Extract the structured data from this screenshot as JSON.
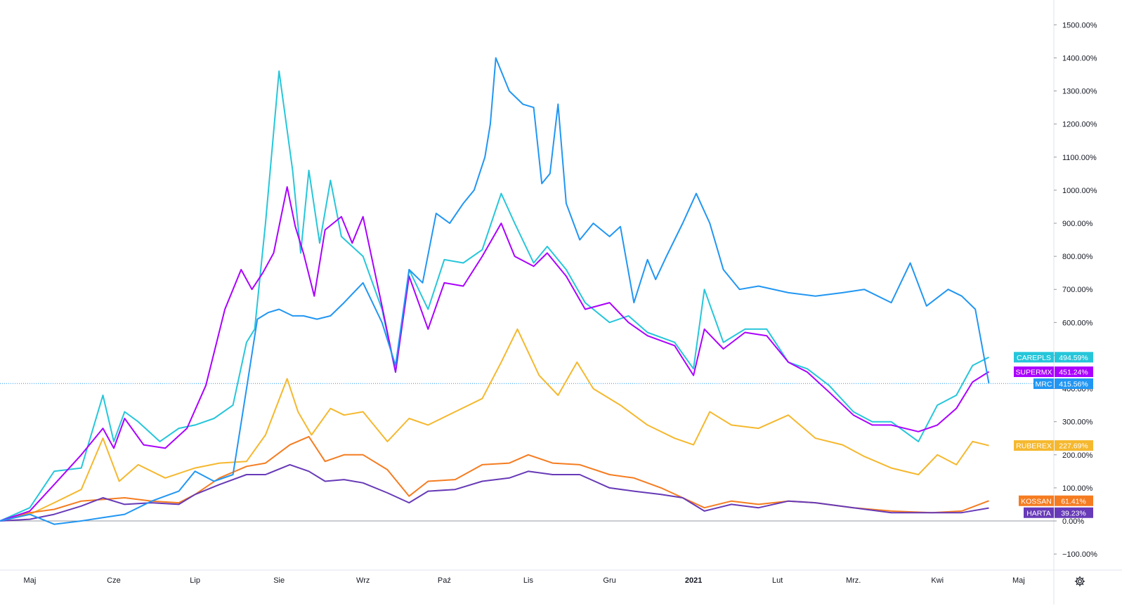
{
  "chart_data": {
    "type": "line",
    "title": "",
    "xlabel": "",
    "ylabel": "",
    "ylim": [
      -150,
      1600
    ],
    "y_ticks": [
      -100,
      0,
      100,
      200,
      300,
      400,
      500,
      600,
      700,
      800,
      900,
      1000,
      1100,
      1200,
      1300,
      1400,
      1500
    ],
    "y_tick_labels": [
      "−100.00%",
      "0.00%",
      "100.00%",
      "200.00%",
      "300.00%",
      "400.00%",
      "500.00%",
      "600.00%",
      "700.00%",
      "800.00%",
      "900.00%",
      "1000.00%",
      "1100.00%",
      "1200.00%",
      "1300.00%",
      "1400.00%",
      "1500.00%"
    ],
    "x_range": [
      "2020-04-20",
      "2021-05-14"
    ],
    "x_ticks": [
      {
        "date": "2020-05-01",
        "label": "Maj",
        "bold": false
      },
      {
        "date": "2020-06-01",
        "label": "Cze",
        "bold": false
      },
      {
        "date": "2020-07-01",
        "label": "Lip",
        "bold": false
      },
      {
        "date": "2020-08-01",
        "label": "Sie",
        "bold": false
      },
      {
        "date": "2020-09-01",
        "label": "Wrz",
        "bold": false
      },
      {
        "date": "2020-10-01",
        "label": "Paź",
        "bold": false
      },
      {
        "date": "2020-11-01",
        "label": "Lis",
        "bold": false
      },
      {
        "date": "2020-12-01",
        "label": "Gru",
        "bold": false
      },
      {
        "date": "2021-01-01",
        "label": "2021",
        "bold": true
      },
      {
        "date": "2021-02-01",
        "label": "Lut",
        "bold": false
      },
      {
        "date": "2021-03-01",
        "label": "Mrz.",
        "bold": false
      },
      {
        "date": "2021-04-01",
        "label": "Kwi",
        "bold": false
      },
      {
        "date": "2021-05-01",
        "label": "Maj",
        "bold": false
      }
    ],
    "reference_line": {
      "value": 415.56,
      "color": "#2196f3"
    },
    "series": [
      {
        "name": "RUBEREX",
        "color": "#f5b82e",
        "last_label": "227.69%",
        "x": [
          "2020-04-20",
          "2020-05-01",
          "2020-05-10",
          "2020-05-20",
          "2020-05-28",
          "2020-06-03",
          "2020-06-10",
          "2020-06-20",
          "2020-07-01",
          "2020-07-10",
          "2020-07-20",
          "2020-07-27",
          "2020-08-04",
          "2020-08-08",
          "2020-08-13",
          "2020-08-20",
          "2020-08-25",
          "2020-09-01",
          "2020-09-10",
          "2020-09-18",
          "2020-09-25",
          "2020-10-05",
          "2020-10-15",
          "2020-10-22",
          "2020-10-28",
          "2020-11-05",
          "2020-11-12",
          "2020-11-19",
          "2020-11-25",
          "2020-12-05",
          "2020-12-15",
          "2020-12-25",
          "2021-01-01",
          "2021-01-07",
          "2021-01-15",
          "2021-01-25",
          "2021-02-05",
          "2021-02-15",
          "2021-02-25",
          "2021-03-05",
          "2021-03-15",
          "2021-03-25",
          "2021-04-01",
          "2021-04-08",
          "2021-04-14",
          "2021-04-20"
        ],
        "values": [
          0,
          20,
          55,
          95,
          250,
          120,
          170,
          130,
          160,
          175,
          180,
          260,
          430,
          330,
          260,
          340,
          320,
          330,
          240,
          310,
          290,
          330,
          370,
          480,
          580,
          440,
          380,
          480,
          400,
          350,
          290,
          250,
          230,
          330,
          290,
          280,
          320,
          250,
          230,
          195,
          160,
          140,
          200,
          170,
          240,
          228
        ]
      },
      {
        "name": "KOSSAN",
        "color": "#f57c20",
        "last_label": "61.41%",
        "x": [
          "2020-04-20",
          "2020-05-01",
          "2020-05-10",
          "2020-05-20",
          "2020-05-28",
          "2020-06-05",
          "2020-06-15",
          "2020-06-25",
          "2020-07-01",
          "2020-07-10",
          "2020-07-20",
          "2020-07-27",
          "2020-08-05",
          "2020-08-12",
          "2020-08-18",
          "2020-08-25",
          "2020-09-01",
          "2020-09-10",
          "2020-09-18",
          "2020-09-25",
          "2020-10-05",
          "2020-10-15",
          "2020-10-25",
          "2020-11-01",
          "2020-11-10",
          "2020-11-20",
          "2020-12-01",
          "2020-12-10",
          "2020-12-20",
          "2020-12-28",
          "2021-01-05",
          "2021-01-15",
          "2021-01-25",
          "2021-02-05",
          "2021-02-15",
          "2021-03-01",
          "2021-03-15",
          "2021-03-30",
          "2021-04-10",
          "2021-04-20"
        ],
        "values": [
          0,
          25,
          35,
          60,
          65,
          70,
          60,
          55,
          80,
          130,
          165,
          175,
          230,
          255,
          180,
          200,
          200,
          155,
          75,
          120,
          125,
          170,
          175,
          200,
          175,
          170,
          140,
          130,
          100,
          70,
          40,
          60,
          50,
          60,
          55,
          40,
          30,
          25,
          30,
          61
        ]
      },
      {
        "name": "HARTA",
        "color": "#673ab7",
        "last_label": "39.23%",
        "x": [
          "2020-04-20",
          "2020-05-01",
          "2020-05-10",
          "2020-05-20",
          "2020-05-28",
          "2020-06-05",
          "2020-06-15",
          "2020-06-25",
          "2020-07-01",
          "2020-07-10",
          "2020-07-20",
          "2020-07-27",
          "2020-08-05",
          "2020-08-12",
          "2020-08-18",
          "2020-08-25",
          "2020-09-01",
          "2020-09-10",
          "2020-09-18",
          "2020-09-25",
          "2020-10-05",
          "2020-10-15",
          "2020-10-25",
          "2020-11-01",
          "2020-11-10",
          "2020-11-20",
          "2020-12-01",
          "2020-12-10",
          "2020-12-20",
          "2020-12-28",
          "2021-01-05",
          "2021-01-15",
          "2021-01-25",
          "2021-02-05",
          "2021-02-15",
          "2021-03-01",
          "2021-03-15",
          "2021-03-30",
          "2021-04-10",
          "2021-04-20"
        ],
        "values": [
          0,
          5,
          20,
          45,
          70,
          50,
          55,
          50,
          80,
          110,
          140,
          140,
          170,
          150,
          120,
          125,
          115,
          85,
          55,
          90,
          95,
          120,
          130,
          150,
          140,
          140,
          100,
          90,
          80,
          70,
          30,
          50,
          40,
          60,
          55,
          40,
          25,
          25,
          25,
          39
        ]
      },
      {
        "name": "CAREPLS",
        "color": "#26c6da",
        "last_label": "494.59%",
        "x": [
          "2020-04-20",
          "2020-05-01",
          "2020-05-10",
          "2020-05-20",
          "2020-05-28",
          "2020-06-01",
          "2020-06-05",
          "2020-06-10",
          "2020-06-18",
          "2020-06-25",
          "2020-07-01",
          "2020-07-08",
          "2020-07-15",
          "2020-07-20",
          "2020-07-23",
          "2020-07-27",
          "2020-08-01",
          "2020-08-06",
          "2020-08-09",
          "2020-08-12",
          "2020-08-16",
          "2020-08-20",
          "2020-08-24",
          "2020-08-28",
          "2020-09-01",
          "2020-09-08",
          "2020-09-13",
          "2020-09-18",
          "2020-09-25",
          "2020-10-01",
          "2020-10-08",
          "2020-10-15",
          "2020-10-22",
          "2020-10-27",
          "2020-11-03",
          "2020-11-08",
          "2020-11-15",
          "2020-11-22",
          "2020-12-01",
          "2020-12-08",
          "2020-12-15",
          "2020-12-25",
          "2021-01-01",
          "2021-01-05",
          "2021-01-12",
          "2021-01-20",
          "2021-01-28",
          "2021-02-05",
          "2021-02-12",
          "2021-02-20",
          "2021-03-01",
          "2021-03-08",
          "2021-03-15",
          "2021-03-25",
          "2021-04-01",
          "2021-04-08",
          "2021-04-14",
          "2021-04-20"
        ],
        "values": [
          0,
          40,
          150,
          160,
          380,
          240,
          330,
          300,
          240,
          280,
          290,
          310,
          350,
          540,
          580,
          900,
          1360,
          1060,
          810,
          1060,
          840,
          1030,
          860,
          830,
          800,
          640,
          450,
          760,
          640,
          790,
          780,
          820,
          990,
          900,
          780,
          830,
          760,
          660,
          600,
          620,
          570,
          540,
          460,
          700,
          540,
          580,
          580,
          480,
          460,
          410,
          330,
          300,
          300,
          240,
          350,
          380,
          470,
          495
        ]
      },
      {
        "name": "SUPERMX",
        "color": "#aa00ff",
        "last_label": "451.24%",
        "x": [
          "2020-04-20",
          "2020-05-01",
          "2020-05-10",
          "2020-05-20",
          "2020-05-28",
          "2020-06-01",
          "2020-06-05",
          "2020-06-12",
          "2020-06-20",
          "2020-06-28",
          "2020-07-05",
          "2020-07-12",
          "2020-07-18",
          "2020-07-22",
          "2020-07-26",
          "2020-07-30",
          "2020-08-04",
          "2020-08-07",
          "2020-08-10",
          "2020-08-14",
          "2020-08-18",
          "2020-08-24",
          "2020-08-28",
          "2020-09-01",
          "2020-09-08",
          "2020-09-13",
          "2020-09-18",
          "2020-09-25",
          "2020-10-01",
          "2020-10-08",
          "2020-10-15",
          "2020-10-22",
          "2020-10-27",
          "2020-11-03",
          "2020-11-08",
          "2020-11-15",
          "2020-11-22",
          "2020-12-01",
          "2020-12-08",
          "2020-12-15",
          "2020-12-25",
          "2021-01-01",
          "2021-01-05",
          "2021-01-12",
          "2021-01-20",
          "2021-01-28",
          "2021-02-05",
          "2021-02-12",
          "2021-02-20",
          "2021-03-01",
          "2021-03-08",
          "2021-03-15",
          "2021-03-25",
          "2021-04-01",
          "2021-04-08",
          "2021-04-14",
          "2021-04-20"
        ],
        "values": [
          0,
          30,
          110,
          200,
          280,
          220,
          310,
          230,
          220,
          280,
          410,
          640,
          760,
          700,
          750,
          810,
          1010,
          890,
          810,
          680,
          880,
          920,
          840,
          920,
          650,
          450,
          740,
          580,
          720,
          710,
          800,
          900,
          800,
          770,
          810,
          740,
          640,
          660,
          600,
          560,
          530,
          440,
          580,
          520,
          570,
          560,
          480,
          450,
          390,
          320,
          290,
          290,
          270,
          290,
          340,
          420,
          451
        ]
      },
      {
        "name": "MRC",
        "color": "#2196f3",
        "last_label": "415.56%",
        "x": [
          "2020-04-20",
          "2020-05-01",
          "2020-05-10",
          "2020-05-20",
          "2020-05-28",
          "2020-06-05",
          "2020-06-15",
          "2020-06-25",
          "2020-07-01",
          "2020-07-08",
          "2020-07-15",
          "2020-07-20",
          "2020-07-24",
          "2020-07-28",
          "2020-08-01",
          "2020-08-06",
          "2020-08-10",
          "2020-08-15",
          "2020-08-20",
          "2020-08-25",
          "2020-09-01",
          "2020-09-08",
          "2020-09-13",
          "2020-09-18",
          "2020-09-23",
          "2020-09-28",
          "2020-10-03",
          "2020-10-08",
          "2020-10-12",
          "2020-10-16",
          "2020-10-18",
          "2020-10-20",
          "2020-10-25",
          "2020-10-30",
          "2020-11-03",
          "2020-11-06",
          "2020-11-09",
          "2020-11-12",
          "2020-11-15",
          "2020-11-20",
          "2020-11-25",
          "2020-12-01",
          "2020-12-05",
          "2020-12-10",
          "2020-12-15",
          "2020-12-18",
          "2020-12-22",
          "2020-12-28",
          "2021-01-02",
          "2021-01-07",
          "2021-01-12",
          "2021-01-18",
          "2021-01-25",
          "2021-02-05",
          "2021-02-15",
          "2021-02-25",
          "2021-03-05",
          "2021-03-15",
          "2021-03-22",
          "2021-03-28",
          "2021-04-05",
          "2021-04-10",
          "2021-04-15",
          "2021-04-20"
        ],
        "values": [
          0,
          20,
          -10,
          0,
          10,
          20,
          60,
          90,
          150,
          120,
          140,
          400,
          610,
          630,
          640,
          620,
          620,
          610,
          620,
          660,
          720,
          600,
          470,
          760,
          720,
          930,
          900,
          960,
          1000,
          1100,
          1200,
          1400,
          1300,
          1260,
          1250,
          1020,
          1050,
          1260,
          960,
          850,
          900,
          860,
          890,
          660,
          790,
          730,
          800,
          900,
          990,
          900,
          760,
          700,
          710,
          690,
          680,
          690,
          700,
          660,
          780,
          650,
          700,
          680,
          640,
          416
        ]
      }
    ]
  },
  "settings_icon": "gear-icon"
}
